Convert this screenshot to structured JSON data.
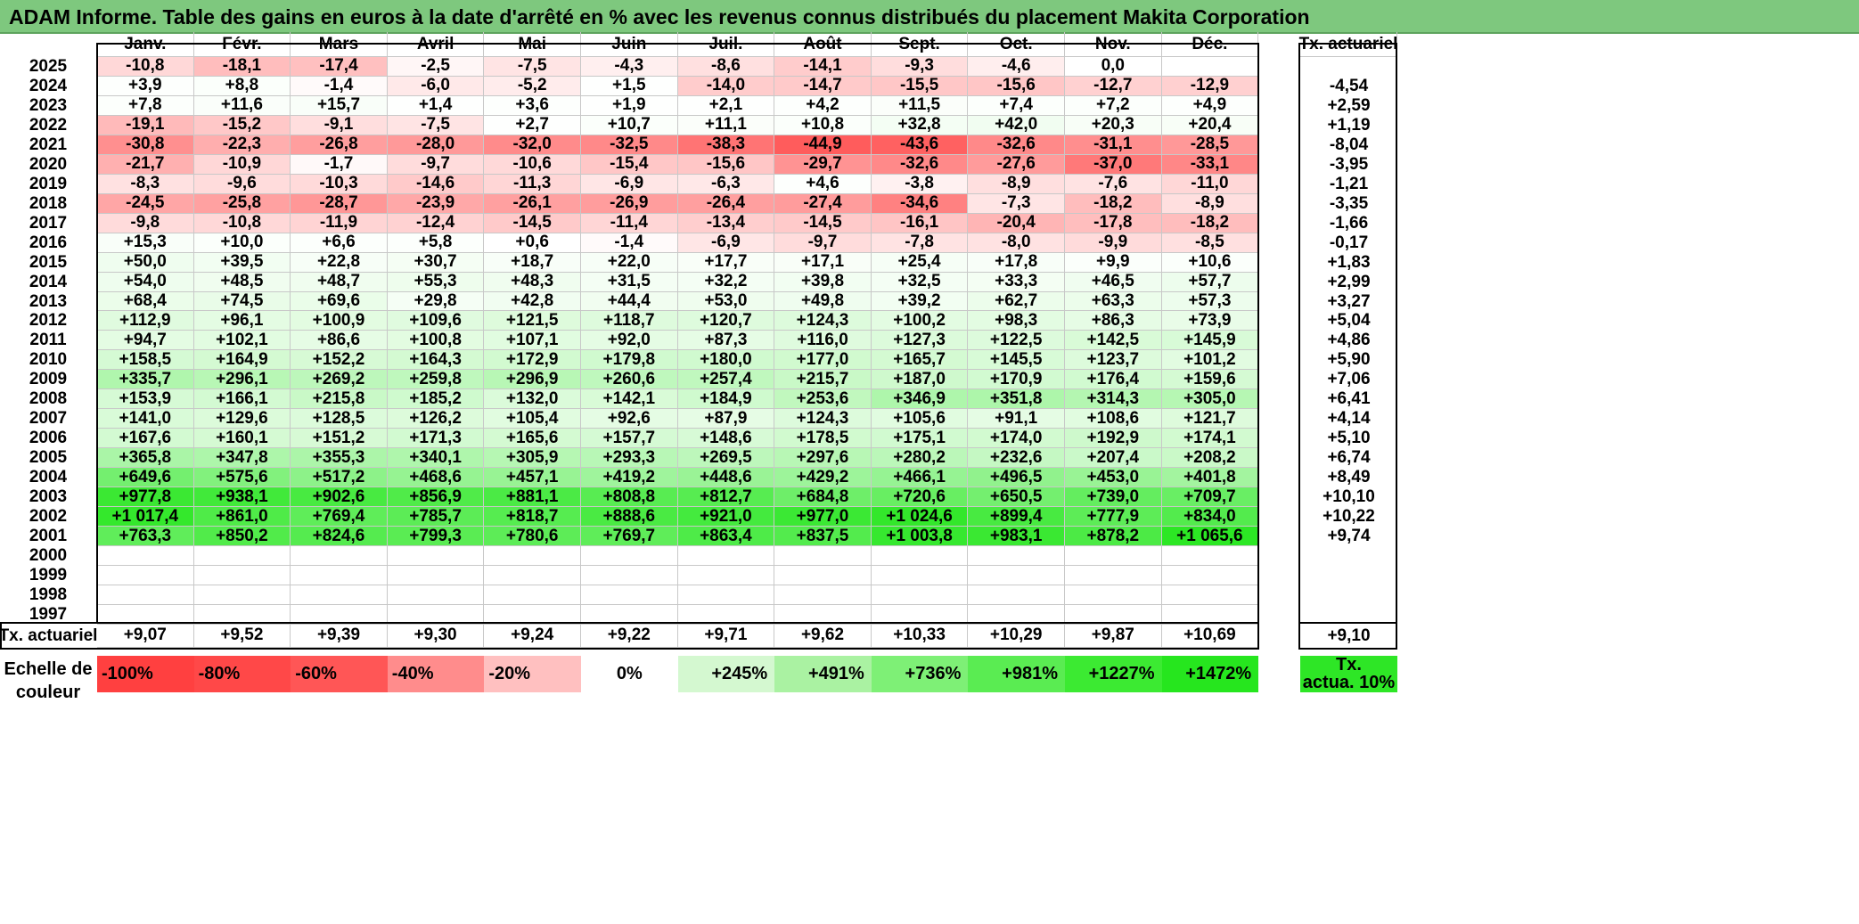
{
  "title": "ADAM Informe. Table des gains en euros à la date d'arrêté en % avec les revenus connus distribués du placement Makita Corporation",
  "months": [
    "Janv.",
    "Févr.",
    "Mars",
    "Avril",
    "Mai",
    "Juin",
    "Juil.",
    "Août",
    "Sept.",
    "Oct.",
    "Nov.",
    "Déc."
  ],
  "tx_header": "Tx. actuariel",
  "rows": [
    {
      "year": "2025",
      "values": [
        "-10,8",
        "-18,1",
        "-17,4",
        "-2,5",
        "-7,5",
        "-4,3",
        "-8,6",
        "-14,1",
        "-9,3",
        "-4,6",
        "0,0",
        ""
      ],
      "tx": ""
    },
    {
      "year": "2024",
      "values": [
        "+3,9",
        "+8,8",
        "-1,4",
        "-6,0",
        "-5,2",
        "+1,5",
        "-14,0",
        "-14,7",
        "-15,5",
        "-15,6",
        "-12,7",
        "-12,9"
      ],
      "tx": "-4,54"
    },
    {
      "year": "2023",
      "values": [
        "+7,8",
        "+11,6",
        "+15,7",
        "+1,4",
        "+3,6",
        "+1,9",
        "+2,1",
        "+4,2",
        "+11,5",
        "+7,4",
        "+7,2",
        "+4,9"
      ],
      "tx": "+2,59"
    },
    {
      "year": "2022",
      "values": [
        "-19,1",
        "-15,2",
        "-9,1",
        "-7,5",
        "+2,7",
        "+10,7",
        "+11,1",
        "+10,8",
        "+32,8",
        "+42,0",
        "+20,3",
        "+20,4"
      ],
      "tx": "+1,19"
    },
    {
      "year": "2021",
      "values": [
        "-30,8",
        "-22,3",
        "-26,8",
        "-28,0",
        "-32,0",
        "-32,5",
        "-38,3",
        "-44,9",
        "-43,6",
        "-32,6",
        "-31,1",
        "-28,5"
      ],
      "tx": "-8,04"
    },
    {
      "year": "2020",
      "values": [
        "-21,7",
        "-10,9",
        "-1,7",
        "-9,7",
        "-10,6",
        "-15,4",
        "-15,6",
        "-29,7",
        "-32,6",
        "-27,6",
        "-37,0",
        "-33,1"
      ],
      "tx": "-3,95"
    },
    {
      "year": "2019",
      "values": [
        "-8,3",
        "-9,6",
        "-10,3",
        "-14,6",
        "-11,3",
        "-6,9",
        "-6,3",
        "+4,6",
        "-3,8",
        "-8,9",
        "-7,6",
        "-11,0"
      ],
      "tx": "-1,21"
    },
    {
      "year": "2018",
      "values": [
        "-24,5",
        "-25,8",
        "-28,7",
        "-23,9",
        "-26,1",
        "-26,9",
        "-26,4",
        "-27,4",
        "-34,6",
        "-7,3",
        "-18,2",
        "-8,9"
      ],
      "tx": "-3,35"
    },
    {
      "year": "2017",
      "values": [
        "-9,8",
        "-10,8",
        "-11,9",
        "-12,4",
        "-14,5",
        "-11,4",
        "-13,4",
        "-14,5",
        "-16,1",
        "-20,4",
        "-17,8",
        "-18,2"
      ],
      "tx": "-1,66"
    },
    {
      "year": "2016",
      "values": [
        "+15,3",
        "+10,0",
        "+6,6",
        "+5,8",
        "+0,6",
        "-1,4",
        "-6,9",
        "-9,7",
        "-7,8",
        "-8,0",
        "-9,9",
        "-8,5"
      ],
      "tx": "-0,17"
    },
    {
      "year": "2015",
      "values": [
        "+50,0",
        "+39,5",
        "+22,8",
        "+30,7",
        "+18,7",
        "+22,0",
        "+17,7",
        "+17,1",
        "+25,4",
        "+17,8",
        "+9,9",
        "+10,6"
      ],
      "tx": "+1,83"
    },
    {
      "year": "2014",
      "values": [
        "+54,0",
        "+48,5",
        "+48,7",
        "+55,3",
        "+48,3",
        "+31,5",
        "+32,2",
        "+39,8",
        "+32,5",
        "+33,3",
        "+46,5",
        "+57,7"
      ],
      "tx": "+2,99"
    },
    {
      "year": "2013",
      "values": [
        "+68,4",
        "+74,5",
        "+69,6",
        "+29,8",
        "+42,8",
        "+44,4",
        "+53,0",
        "+49,8",
        "+39,2",
        "+62,7",
        "+63,3",
        "+57,3"
      ],
      "tx": "+3,27"
    },
    {
      "year": "2012",
      "values": [
        "+112,9",
        "+96,1",
        "+100,9",
        "+109,6",
        "+121,5",
        "+118,7",
        "+120,7",
        "+124,3",
        "+100,2",
        "+98,3",
        "+86,3",
        "+73,9"
      ],
      "tx": "+5,04"
    },
    {
      "year": "2011",
      "values": [
        "+94,7",
        "+102,1",
        "+86,6",
        "+100,8",
        "+107,1",
        "+92,0",
        "+87,3",
        "+116,0",
        "+127,3",
        "+122,5",
        "+142,5",
        "+145,9"
      ],
      "tx": "+4,86"
    },
    {
      "year": "2010",
      "values": [
        "+158,5",
        "+164,9",
        "+152,2",
        "+164,3",
        "+172,9",
        "+179,8",
        "+180,0",
        "+177,0",
        "+165,7",
        "+145,5",
        "+123,7",
        "+101,2"
      ],
      "tx": "+5,90"
    },
    {
      "year": "2009",
      "values": [
        "+335,7",
        "+296,1",
        "+269,2",
        "+259,8",
        "+296,9",
        "+260,6",
        "+257,4",
        "+215,7",
        "+187,0",
        "+170,9",
        "+176,4",
        "+159,6"
      ],
      "tx": "+7,06"
    },
    {
      "year": "2008",
      "values": [
        "+153,9",
        "+166,1",
        "+215,8",
        "+185,2",
        "+132,0",
        "+142,1",
        "+184,9",
        "+253,6",
        "+346,9",
        "+351,8",
        "+314,3",
        "+305,0"
      ],
      "tx": "+6,41"
    },
    {
      "year": "2007",
      "values": [
        "+141,0",
        "+129,6",
        "+128,5",
        "+126,2",
        "+105,4",
        "+92,6",
        "+87,9",
        "+124,3",
        "+105,6",
        "+91,1",
        "+108,6",
        "+121,7"
      ],
      "tx": "+4,14"
    },
    {
      "year": "2006",
      "values": [
        "+167,6",
        "+160,1",
        "+151,2",
        "+171,3",
        "+165,6",
        "+157,7",
        "+148,6",
        "+178,5",
        "+175,1",
        "+174,0",
        "+192,9",
        "+174,1"
      ],
      "tx": "+5,10"
    },
    {
      "year": "2005",
      "values": [
        "+365,8",
        "+347,8",
        "+355,3",
        "+340,1",
        "+305,9",
        "+293,3",
        "+269,5",
        "+297,6",
        "+280,2",
        "+232,6",
        "+207,4",
        "+208,2"
      ],
      "tx": "+6,74"
    },
    {
      "year": "2004",
      "values": [
        "+649,6",
        "+575,6",
        "+517,2",
        "+468,6",
        "+457,1",
        "+419,2",
        "+448,6",
        "+429,2",
        "+466,1",
        "+496,5",
        "+453,0",
        "+401,8"
      ],
      "tx": "+8,49"
    },
    {
      "year": "2003",
      "values": [
        "+977,8",
        "+938,1",
        "+902,6",
        "+856,9",
        "+881,1",
        "+808,8",
        "+812,7",
        "+684,8",
        "+720,6",
        "+650,5",
        "+739,0",
        "+709,7"
      ],
      "tx": "+10,10"
    },
    {
      "year": "2002",
      "values": [
        "+1 017,4",
        "+861,0",
        "+769,4",
        "+785,7",
        "+818,7",
        "+888,6",
        "+921,0",
        "+977,0",
        "+1 024,6",
        "+899,4",
        "+777,9",
        "+834,0"
      ],
      "tx": "+10,22"
    },
    {
      "year": "2001",
      "values": [
        "+763,3",
        "+850,2",
        "+824,6",
        "+799,3",
        "+780,6",
        "+769,7",
        "+863,4",
        "+837,5",
        "+1 003,8",
        "+983,1",
        "+878,2",
        "+1 065,6"
      ],
      "tx": "+9,74"
    },
    {
      "year": "2000",
      "values": [
        "",
        "",
        "",
        "",
        "",
        "",
        "",
        "",
        "",
        "",
        "",
        ""
      ],
      "tx": ""
    },
    {
      "year": "1999",
      "values": [
        "",
        "",
        "",
        "",
        "",
        "",
        "",
        "",
        "",
        "",
        "",
        ""
      ],
      "tx": ""
    },
    {
      "year": "1998",
      "values": [
        "",
        "",
        "",
        "",
        "",
        "",
        "",
        "",
        "",
        "",
        "",
        ""
      ],
      "tx": ""
    },
    {
      "year": "1997",
      "values": [
        "",
        "",
        "",
        "",
        "",
        "",
        "",
        "",
        "",
        "",
        "",
        ""
      ],
      "tx": ""
    }
  ],
  "footer": {
    "label": "Tx. actuariel",
    "values": [
      "+9,07",
      "+9,52",
      "+9,39",
      "+9,30",
      "+9,24",
      "+9,22",
      "+9,71",
      "+9,62",
      "+10,33",
      "+10,29",
      "+9,87",
      "+10,69"
    ],
    "tx": "+9,10"
  },
  "scale": {
    "label_line1": "Echelle de",
    "label_line2": "couleur",
    "items": [
      {
        "label": "-100%",
        "color": "#ff4040"
      },
      {
        "label": "-80%",
        "color": "#ff4848"
      },
      {
        "label": "-60%",
        "color": "#ff5656"
      },
      {
        "label": "-40%",
        "color": "#ff8c8c"
      },
      {
        "label": "-20%",
        "color": "#ffc0c0"
      },
      {
        "label": "0%",
        "color": "#ffffff"
      },
      {
        "label": "+245%",
        "color": "#d4f8d0"
      },
      {
        "label": "+491%",
        "color": "#aaf2a2"
      },
      {
        "label": "+736%",
        "color": "#7ef076"
      },
      {
        "label": "+981%",
        "color": "#5aec52"
      },
      {
        "label": "+1227%",
        "color": "#3cea32"
      },
      {
        "label": "+1472%",
        "color": "#26e61e"
      }
    ],
    "tx_line1": "Tx.",
    "tx_line2": "actua. 10%",
    "tx_color": "#2ee626"
  },
  "colors": {
    "title_bg": "#7ec87e",
    "negative_max": "#ff4040",
    "positive_max": "#26e61e"
  }
}
